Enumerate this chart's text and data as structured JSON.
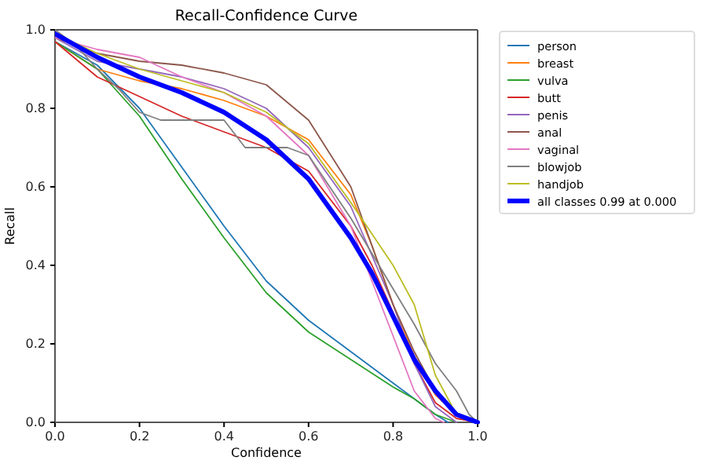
{
  "chart_data": {
    "type": "line",
    "title": "Recall-Confidence Curve",
    "xlabel": "Confidence",
    "ylabel": "Recall",
    "xlim": [
      0,
      1
    ],
    "ylim": [
      0,
      1
    ],
    "xticks": [
      {
        "value": 0,
        "label": "0.0"
      },
      0.2,
      0.4,
      0.6,
      0.8,
      {
        "value": 1,
        "label": "1.0"
      }
    ],
    "yticks": [
      {
        "value": 0,
        "label": "0.0"
      },
      0.2,
      0.4,
      0.6,
      0.8,
      {
        "value": 1,
        "label": "1.0"
      }
    ],
    "grid": false,
    "legend": "right",
    "line_style": "solid",
    "marker": "none",
    "series": [
      {
        "name": "person",
        "color": "#1f77b4",
        "x": [
          0,
          0.1,
          0.2,
          0.3,
          0.4,
          0.5,
          0.6,
          0.7,
          0.8,
          0.85,
          0.9,
          0.93
        ],
        "values": [
          0.97,
          0.91,
          0.8,
          0.65,
          0.5,
          0.36,
          0.26,
          0.18,
          0.1,
          0.06,
          0.02,
          0
        ]
      },
      {
        "name": "breast",
        "color": "#ff7f0e",
        "x": [
          0,
          0.1,
          0.2,
          0.3,
          0.4,
          0.5,
          0.6,
          0.7,
          0.75,
          0.8,
          0.85,
          0.9,
          0.95,
          1
        ],
        "values": [
          0.97,
          0.9,
          0.87,
          0.85,
          0.82,
          0.78,
          0.72,
          0.58,
          0.45,
          0.3,
          0.17,
          0.07,
          0.02,
          0
        ]
      },
      {
        "name": "vulva",
        "color": "#2ca02c",
        "x": [
          0,
          0.1,
          0.2,
          0.3,
          0.4,
          0.5,
          0.6,
          0.7,
          0.8,
          0.85,
          0.9,
          0.95
        ],
        "values": [
          0.97,
          0.9,
          0.78,
          0.62,
          0.47,
          0.33,
          0.23,
          0.16,
          0.09,
          0.06,
          0.02,
          0
        ]
      },
      {
        "name": "butt",
        "color": "#d62728",
        "x": [
          0,
          0.1,
          0.2,
          0.3,
          0.4,
          0.5,
          0.6,
          0.7,
          0.75,
          0.8,
          0.85,
          0.9,
          0.95,
          1
        ],
        "values": [
          0.97,
          0.88,
          0.83,
          0.78,
          0.74,
          0.7,
          0.64,
          0.5,
          0.4,
          0.28,
          0.15,
          0.05,
          0.01,
          0
        ]
      },
      {
        "name": "penis",
        "color": "#9467bd",
        "x": [
          0,
          0.1,
          0.2,
          0.3,
          0.4,
          0.5,
          0.6,
          0.7,
          0.8,
          0.85,
          0.9,
          0.95
        ],
        "values": [
          0.98,
          0.92,
          0.9,
          0.88,
          0.85,
          0.8,
          0.7,
          0.55,
          0.3,
          0.15,
          0.04,
          0
        ]
      },
      {
        "name": "anal",
        "color": "#8c564b",
        "x": [
          0,
          0.1,
          0.2,
          0.3,
          0.4,
          0.5,
          0.6,
          0.7,
          0.8,
          0.85,
          0.9,
          0.95,
          1
        ],
        "values": [
          0.98,
          0.94,
          0.92,
          0.91,
          0.89,
          0.86,
          0.77,
          0.6,
          0.3,
          0.18,
          0.08,
          0.02,
          0
        ]
      },
      {
        "name": "vaginal",
        "color": "#e377c2",
        "x": [
          0,
          0.1,
          0.2,
          0.3,
          0.4,
          0.5,
          0.6,
          0.7,
          0.8,
          0.85,
          0.9,
          0.92
        ],
        "values": [
          0.98,
          0.95,
          0.93,
          0.88,
          0.84,
          0.78,
          0.68,
          0.5,
          0.22,
          0.08,
          0.01,
          0
        ]
      },
      {
        "name": "blowjob",
        "color": "#7f7f7f",
        "x": [
          0,
          0.05,
          0.1,
          0.15,
          0.2,
          0.25,
          0.4,
          0.45,
          0.55,
          0.6,
          0.7,
          0.8,
          0.85,
          0.9,
          0.95,
          0.98,
          1
        ],
        "values": [
          1,
          0.96,
          0.9,
          0.85,
          0.79,
          0.77,
          0.77,
          0.7,
          0.7,
          0.68,
          0.52,
          0.34,
          0.25,
          0.15,
          0.08,
          0.02,
          0
        ]
      },
      {
        "name": "handjob",
        "color": "#bcbd22",
        "x": [
          0,
          0.1,
          0.2,
          0.3,
          0.4,
          0.5,
          0.6,
          0.7,
          0.8,
          0.85,
          0.9,
          0.95,
          1
        ],
        "values": [
          0.99,
          0.94,
          0.9,
          0.87,
          0.84,
          0.79,
          0.71,
          0.56,
          0.4,
          0.3,
          0.12,
          0.02,
          0
        ]
      },
      {
        "name": "all classes 0.99 at 0.000",
        "color": "#0000ff",
        "x": [
          0,
          0.1,
          0.2,
          0.3,
          0.4,
          0.5,
          0.6,
          0.7,
          0.75,
          0.8,
          0.85,
          0.9,
          0.95,
          1
        ],
        "values": [
          0.99,
          0.93,
          0.88,
          0.84,
          0.79,
          0.72,
          0.62,
          0.47,
          0.38,
          0.27,
          0.16,
          0.08,
          0.02,
          0
        ]
      }
    ]
  }
}
